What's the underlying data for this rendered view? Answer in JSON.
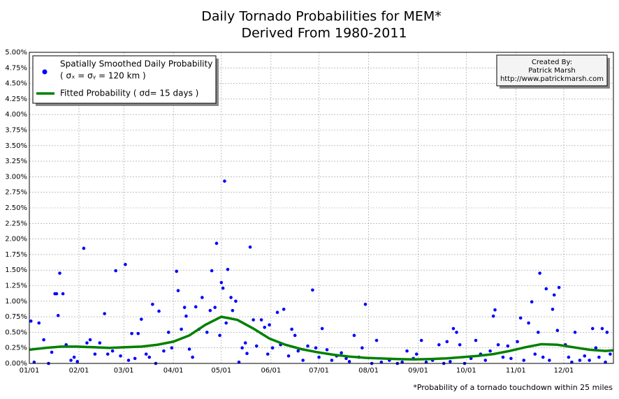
{
  "chart_data": {
    "type": "scatter",
    "title": "Daily Tornado Probabilities for MEM*",
    "subtitle": "Derived From 1980-2011",
    "footnote": "*Probability of a tornado touchdown within 25 miles",
    "credit": [
      "Created By:",
      "Patrick Marsh",
      "http://www.patrickmarsh.com"
    ],
    "xlim": [
      0,
      365
    ],
    "ylim": [
      0,
      5
    ],
    "grid": true,
    "legend": "upper left",
    "xticks": [
      {
        "value": 0,
        "label": "01/01"
      },
      {
        "value": 31,
        "label": "02/01"
      },
      {
        "value": 59,
        "label": "03/01"
      },
      {
        "value": 90,
        "label": "04/01"
      },
      {
        "value": 120,
        "label": "05/01"
      },
      {
        "value": 151,
        "label": "06/01"
      },
      {
        "value": 181,
        "label": "07/01"
      },
      {
        "value": 212,
        "label": "08/01"
      },
      {
        "value": 243,
        "label": "09/01"
      },
      {
        "value": 273,
        "label": "10/01"
      },
      {
        "value": 304,
        "label": "11/01"
      },
      {
        "value": 334,
        "label": "12/01"
      }
    ],
    "yticks": [
      {
        "value": 0,
        "label": "0.00%"
      },
      {
        "value": 0.25,
        "label": "0.25%"
      },
      {
        "value": 0.5,
        "label": "0.50%"
      },
      {
        "value": 0.75,
        "label": "0.75%"
      },
      {
        "value": 1,
        "label": "1.00%"
      },
      {
        "value": 1.25,
        "label": "1.25%"
      },
      {
        "value": 1.5,
        "label": "1.50%"
      },
      {
        "value": 1.75,
        "label": "1.75%"
      },
      {
        "value": 2,
        "label": "2.00%"
      },
      {
        "value": 2.25,
        "label": "2.25%"
      },
      {
        "value": 2.5,
        "label": "2.50%"
      },
      {
        "value": 2.75,
        "label": "2.75%"
      },
      {
        "value": 3,
        "label": "3.00%"
      },
      {
        "value": 3.25,
        "label": "3.25%"
      },
      {
        "value": 3.5,
        "label": "3.50%"
      },
      {
        "value": 3.75,
        "label": "3.75%"
      },
      {
        "value": 4,
        "label": "4.00%"
      },
      {
        "value": 4.25,
        "label": "4.25%"
      },
      {
        "value": 4.5,
        "label": "4.50%"
      },
      {
        "value": 4.75,
        "label": "4.75%"
      },
      {
        "value": 5,
        "label": "5.00%"
      }
    ],
    "series": [
      {
        "name": "Spatially Smoothed Daily Probability",
        "subname": "( σₓ = σᵧ = 120 km )",
        "type": "scatter",
        "color": "#0000ff",
        "x": [
          1,
          6,
          9,
          16,
          17,
          18,
          19,
          21,
          23,
          34,
          36,
          38,
          47,
          54,
          60,
          64,
          68,
          70,
          77,
          81,
          87,
          92,
          93,
          97,
          98,
          104,
          108,
          114,
          117,
          120,
          121,
          122,
          124,
          126,
          129,
          138,
          140,
          145,
          155,
          159,
          177,
          183,
          203,
          210,
          217,
          245,
          265,
          267,
          290,
          291,
          307,
          312,
          314,
          319,
          323,
          327,
          328,
          331,
          330,
          341,
          352,
          358,
          361,
          3,
          12,
          14,
          26,
          28,
          30,
          41,
          44,
          49,
          52,
          57,
          62,
          66,
          73,
          75,
          79,
          84,
          89,
          95,
          100,
          102,
          106,
          111,
          113,
          116,
          119,
          123,
          127,
          131,
          133,
          135,
          136,
          142,
          147,
          149,
          150,
          152,
          157,
          162,
          164,
          166,
          168,
          171,
          174,
          179,
          181,
          186,
          189,
          192,
          195,
          198,
          200,
          206,
          208,
          214,
          220,
          225,
          230,
          233,
          236,
          240,
          242,
          248,
          252,
          256,
          259,
          261,
          263,
          269,
          272,
          276,
          279,
          282,
          285,
          288,
          293,
          296,
          299,
          301,
          305,
          309,
          316,
          318,
          321,
          325,
          335,
          337,
          339,
          344,
          347,
          350,
          354,
          356,
          360,
          363
        ],
        "values": [
          0.68,
          0.65,
          0.38,
          1.12,
          1.12,
          0.77,
          1.45,
          1.12,
          0.3,
          1.85,
          0.33,
          0.38,
          0.8,
          1.49,
          1.59,
          0.48,
          0.48,
          0.71,
          0.95,
          0.84,
          0.5,
          1.48,
          1.17,
          0.9,
          0.76,
          0.91,
          1.06,
          1.49,
          1.93,
          1.3,
          1.21,
          2.93,
          1.51,
          1.06,
          1.0,
          1.87,
          0.7,
          0.7,
          0.82,
          0.87,
          1.18,
          0.56,
          0.45,
          0.95,
          0.37,
          0.37,
          0.56,
          0.5,
          0.76,
          0.86,
          0.73,
          0.65,
          0.99,
          1.45,
          1.2,
          0.87,
          1.1,
          1.22,
          0.53,
          0.5,
          0.56,
          0.56,
          0.5,
          0.02,
          0.0,
          0.18,
          0.05,
          0.1,
          0.03,
          0.15,
          0.33,
          0.15,
          0.2,
          0.12,
          0.05,
          0.08,
          0.15,
          0.1,
          0.0,
          0.2,
          0.25,
          0.55,
          0.23,
          0.1,
          0.55,
          0.5,
          0.85,
          0.9,
          0.45,
          0.65,
          0.85,
          0.02,
          0.25,
          0.33,
          0.16,
          0.28,
          0.58,
          0.15,
          0.62,
          0.25,
          0.3,
          0.12,
          0.55,
          0.45,
          0.2,
          0.05,
          0.28,
          0.25,
          0.1,
          0.22,
          0.05,
          0.12,
          0.17,
          0.08,
          0.03,
          0.1,
          0.25,
          0.0,
          0.02,
          0.05,
          0.0,
          0.02,
          0.2,
          0.08,
          0.15,
          0.02,
          0.05,
          0.3,
          0.0,
          0.35,
          0.03,
          0.3,
          0.0,
          0.08,
          0.37,
          0.15,
          0.05,
          0.2,
          0.3,
          0.1,
          0.28,
          0.08,
          0.35,
          0.05,
          0.15,
          0.5,
          0.1,
          0.05,
          0.3,
          0.1,
          0.02,
          0.05,
          0.12,
          0.05,
          0.25,
          0.1,
          0.02,
          0.15
        ]
      },
      {
        "name": "Fitted Probability ( σd= 15 days )",
        "type": "line",
        "color": "#008000",
        "x": [
          0,
          10,
          20,
          30,
          40,
          50,
          60,
          70,
          80,
          90,
          100,
          110,
          120,
          130,
          140,
          150,
          160,
          170,
          180,
          190,
          200,
          210,
          220,
          230,
          240,
          250,
          260,
          270,
          280,
          290,
          300,
          310,
          320,
          330,
          340,
          350,
          360,
          365
        ],
        "values": [
          0.22,
          0.25,
          0.27,
          0.27,
          0.26,
          0.25,
          0.26,
          0.27,
          0.3,
          0.35,
          0.45,
          0.62,
          0.75,
          0.7,
          0.56,
          0.4,
          0.3,
          0.23,
          0.18,
          0.14,
          0.11,
          0.09,
          0.08,
          0.07,
          0.065,
          0.07,
          0.08,
          0.1,
          0.12,
          0.15,
          0.2,
          0.26,
          0.31,
          0.3,
          0.26,
          0.22,
          0.2,
          0.21
        ]
      }
    ]
  }
}
